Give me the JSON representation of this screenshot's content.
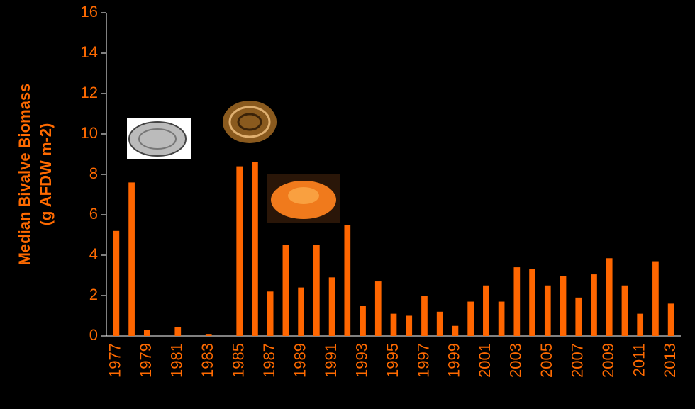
{
  "chart_data": {
    "type": "bar",
    "y_label": [
      "Median Bivalve Biomass",
      "(g AFDW m-2)"
    ],
    "categories": [
      "1977",
      null,
      "1979",
      null,
      "1981",
      null,
      "1983",
      null,
      "1985",
      null,
      "1987",
      null,
      "1989",
      null,
      "1991",
      null,
      "1993",
      null,
      "1995",
      null,
      "1997",
      null,
      "1999",
      null,
      "2001",
      null,
      "2003",
      null,
      "2005",
      null,
      "2007",
      null,
      "2009",
      null,
      "2011",
      null,
      "2013"
    ],
    "values": [
      5.2,
      7.6,
      0.3,
      0,
      0.45,
      0,
      0.1,
      0,
      8.4,
      8.6,
      2.2,
      4.5,
      2.4,
      4.5,
      2.9,
      5.5,
      1.5,
      2.7,
      1.1,
      1.0,
      2.0,
      1.2,
      0.5,
      1.7,
      2.5,
      1.7,
      3.4,
      3.3,
      2.5,
      2.95,
      1.9,
      3.05,
      3.85,
      2.5,
      1.1,
      3.7,
      1.6
    ],
    "color": "#ff6600",
    "ylim": [
      0,
      16
    ],
    "yticks": [
      0,
      2,
      4,
      6,
      8,
      10,
      12,
      14,
      16
    ],
    "grid": false
  }
}
